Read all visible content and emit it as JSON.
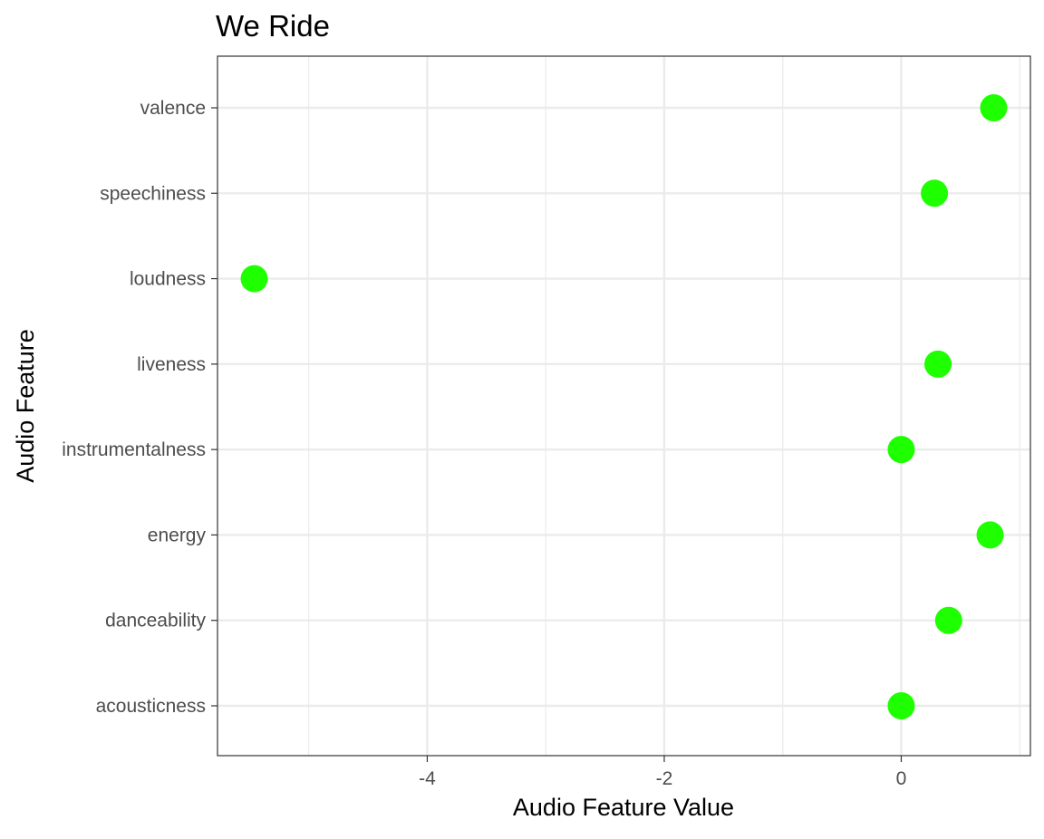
{
  "chart_data": {
    "type": "scatter",
    "title": "We Ride",
    "xlabel": "Audio Feature Value",
    "ylabel": "Audio Feature",
    "categories": [
      "acousticness",
      "danceability",
      "energy",
      "instrumentalness",
      "liveness",
      "loudness",
      "speechiness",
      "valence"
    ],
    "values": [
      0.0,
      0.4,
      0.75,
      0.0,
      0.31,
      -5.46,
      0.28,
      0.78
    ],
    "xlim": [
      -5.77,
      1.09
    ],
    "x_ticks": [
      -4,
      -2,
      0
    ],
    "x_tick_labels": [
      "-4",
      "-2",
      "0"
    ],
    "grid": true,
    "point_color": "#1EFF00",
    "legend": "none"
  }
}
